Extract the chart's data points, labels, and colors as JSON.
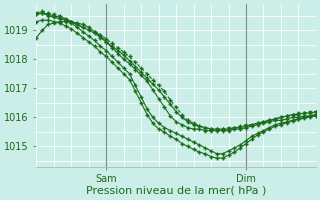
{
  "background_color": "#cceee8",
  "grid_color": "#ffffff",
  "line_color": "#1a6b1a",
  "marker_color": "#1a6b1a",
  "xlabel": "Pression niveau de la mer( hPa )",
  "xlabel_fontsize": 8,
  "yticks": [
    1015,
    1016,
    1017,
    1018,
    1019
  ],
  "ylim": [
    1014.3,
    1019.9
  ],
  "xlim": [
    0,
    48
  ],
  "xtick_positions": [
    12,
    36
  ],
  "xtick_labels": [
    "Sam",
    "Dim"
  ],
  "vline_positions": [
    12,
    36
  ],
  "series": [
    [
      1019.55,
      1019.6,
      1019.5,
      1019.45,
      1019.4,
      1019.35,
      1019.3,
      1019.2,
      1019.1,
      1019.0,
      1018.9,
      1018.75,
      1018.6,
      1018.45,
      1018.3,
      1018.15,
      1017.95,
      1017.75,
      1017.55,
      1017.35,
      1017.15,
      1016.95,
      1016.7,
      1016.45,
      1016.2,
      1016.0,
      1015.85,
      1015.75,
      1015.7,
      1015.65,
      1015.6,
      1015.6,
      1015.6,
      1015.6,
      1015.65,
      1015.65,
      1015.7,
      1015.75,
      1015.8,
      1015.85,
      1015.9,
      1015.95,
      1016.0,
      1016.05,
      1016.1,
      1016.1,
      1016.15,
      1016.15,
      1016.2
    ],
    [
      1019.6,
      1019.65,
      1019.6,
      1019.55,
      1019.5,
      1019.4,
      1019.3,
      1019.2,
      1019.1,
      1019.05,
      1018.95,
      1018.85,
      1018.7,
      1018.55,
      1018.4,
      1018.25,
      1018.1,
      1017.9,
      1017.7,
      1017.5,
      1017.3,
      1017.1,
      1016.9,
      1016.6,
      1016.35,
      1016.1,
      1015.9,
      1015.8,
      1015.7,
      1015.65,
      1015.6,
      1015.6,
      1015.6,
      1015.65,
      1015.65,
      1015.7,
      1015.75,
      1015.75,
      1015.8,
      1015.85,
      1015.9,
      1015.95,
      1016.0,
      1016.05,
      1016.1,
      1016.15,
      1016.15,
      1016.2,
      1016.2
    ],
    [
      1018.75,
      1019.0,
      1019.2,
      1019.25,
      1019.3,
      1019.3,
      1019.3,
      1019.25,
      1019.2,
      1019.1,
      1018.95,
      1018.8,
      1018.6,
      1018.4,
      1018.2,
      1018.0,
      1017.85,
      1017.65,
      1017.45,
      1017.25,
      1016.95,
      1016.65,
      1016.35,
      1016.05,
      1015.85,
      1015.75,
      1015.65,
      1015.6,
      1015.6,
      1015.55,
      1015.55,
      1015.55,
      1015.55,
      1015.55,
      1015.6,
      1015.6,
      1015.65,
      1015.7,
      1015.75,
      1015.8,
      1015.85,
      1015.9,
      1015.9,
      1015.95,
      1016.0,
      1016.0,
      1016.05,
      1016.05,
      1016.1
    ],
    [
      1019.55,
      1019.6,
      1019.55,
      1019.5,
      1019.45,
      1019.35,
      1019.25,
      1019.1,
      1018.95,
      1018.8,
      1018.65,
      1018.45,
      1018.3,
      1018.1,
      1017.9,
      1017.7,
      1017.5,
      1017.1,
      1016.7,
      1016.3,
      1016.0,
      1015.8,
      1015.65,
      1015.55,
      1015.45,
      1015.35,
      1015.25,
      1015.15,
      1015.05,
      1014.95,
      1014.85,
      1014.75,
      1014.75,
      1014.85,
      1014.95,
      1015.05,
      1015.2,
      1015.35,
      1015.45,
      1015.55,
      1015.65,
      1015.75,
      1015.8,
      1015.85,
      1015.9,
      1015.95,
      1016.0,
      1016.05,
      1016.1
    ],
    [
      1019.3,
      1019.35,
      1019.35,
      1019.3,
      1019.25,
      1019.15,
      1019.05,
      1018.9,
      1018.75,
      1018.6,
      1018.45,
      1018.25,
      1018.1,
      1017.9,
      1017.7,
      1017.5,
      1017.3,
      1016.9,
      1016.5,
      1016.1,
      1015.8,
      1015.6,
      1015.5,
      1015.35,
      1015.25,
      1015.1,
      1015.0,
      1014.9,
      1014.8,
      1014.75,
      1014.65,
      1014.6,
      1014.6,
      1014.7,
      1014.8,
      1014.95,
      1015.1,
      1015.25,
      1015.4,
      1015.5,
      1015.6,
      1015.7,
      1015.75,
      1015.82,
      1015.88,
      1015.93,
      1015.97,
      1016.02,
      1016.05
    ]
  ],
  "series_styles": [
    {
      "lw": 0.8,
      "marker": "+",
      "ms": 3.5,
      "dashes": []
    },
    {
      "lw": 0.8,
      "marker": "+",
      "ms": 3.5,
      "dashes": [
        3,
        2
      ]
    },
    {
      "lw": 0.8,
      "marker": "+",
      "ms": 3.5,
      "dashes": []
    },
    {
      "lw": 0.8,
      "marker": "+",
      "ms": 3.5,
      "dashes": []
    },
    {
      "lw": 0.8,
      "marker": "+",
      "ms": 3.5,
      "dashes": []
    }
  ]
}
